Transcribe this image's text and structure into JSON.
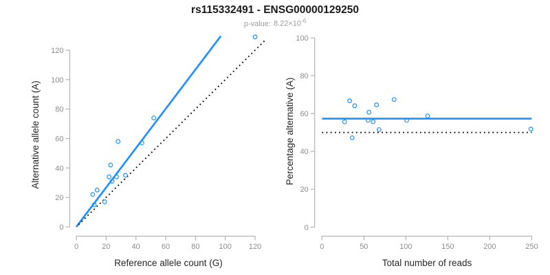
{
  "figure": {
    "title": "rs115332491 - ENSG00000129250",
    "pvalue_label": "p-value:",
    "pvalue_base": "8.22×10",
    "pvalue_exponent": "-6"
  },
  "colors": {
    "accent_blue": "#1E90FF",
    "identity_black": "#111111",
    "axis_line": "#b3b3b3",
    "tick_label": "#8c8c8c",
    "axis_title": "#262626",
    "title": "#1a1a1a",
    "subtitle": "#9b9b9b"
  },
  "chart_data": [
    {
      "type": "scatter",
      "panel": "reference-vs-alternative-counts",
      "title": "",
      "xlabel": "Reference allele count (G)",
      "ylabel": "Alternative allele count (A)",
      "xlim": [
        0,
        128
      ],
      "ylim": [
        0,
        130
      ],
      "xticks": [
        0,
        20,
        40,
        60,
        80,
        100,
        120
      ],
      "yticks": [
        0,
        20,
        40,
        60,
        80,
        100,
        120
      ],
      "grid": false,
      "legend": "none",
      "point_style": {
        "shape": "open-circle",
        "color": "#1E90FF"
      },
      "points": [
        [
          11,
          22
        ],
        [
          12,
          15
        ],
        [
          14,
          25
        ],
        [
          19,
          17
        ],
        [
          22,
          34
        ],
        [
          23,
          42
        ],
        [
          24,
          31
        ],
        [
          27,
          34
        ],
        [
          28,
          58
        ],
        [
          33,
          35
        ],
        [
          44,
          57
        ],
        [
          52,
          74
        ],
        [
          120,
          129
        ]
      ],
      "lines": [
        {
          "name": "fitted-allelic-ratio-line",
          "style": "solid",
          "color": "#1E90FF",
          "slope": 1.336,
          "intercept": 0,
          "x1": 0,
          "y1": 0,
          "x2": 97,
          "y2": 129.6
        },
        {
          "name": "identity-line",
          "style": "dotted",
          "color": "#111111",
          "slope": 1,
          "intercept": 0,
          "x1": 1.5,
          "y1": 1.5,
          "x2": 127,
          "y2": 127
        }
      ]
    },
    {
      "type": "scatter",
      "panel": "percentage-vs-total-reads",
      "title": "",
      "xlabel": "Total number of reads",
      "ylabel": "Percentage alternative (A)",
      "xlim": [
        0,
        250
      ],
      "ylim": [
        0,
        100
      ],
      "xticks": [
        0,
        50,
        100,
        150,
        200,
        250
      ],
      "yticks": [
        0,
        20,
        40,
        60,
        80,
        100
      ],
      "grid": false,
      "legend": "none",
      "point_style": {
        "shape": "open-circle",
        "color": "#1E90FF"
      },
      "points": [
        [
          33,
          66.7
        ],
        [
          27,
          55.6
        ],
        [
          39,
          64.1
        ],
        [
          36,
          47.2
        ],
        [
          56,
          60.7
        ],
        [
          65,
          64.6
        ],
        [
          55,
          56.4
        ],
        [
          61,
          55.7
        ],
        [
          86,
          67.4
        ],
        [
          68,
          51.5
        ],
        [
          101,
          56.4
        ],
        [
          126,
          58.7
        ],
        [
          249,
          51.8
        ]
      ],
      "lines": [
        {
          "name": "mean-percentage-line",
          "style": "solid",
          "color": "#1E90FF",
          "value": 57.3,
          "x1": 0,
          "y1": 57.3,
          "x2": 250,
          "y2": 57.3
        },
        {
          "name": "null-50-percent-line",
          "style": "dotted",
          "color": "#111111",
          "value": 50,
          "x1": 0,
          "y1": 50,
          "x2": 250,
          "y2": 50
        }
      ]
    }
  ]
}
